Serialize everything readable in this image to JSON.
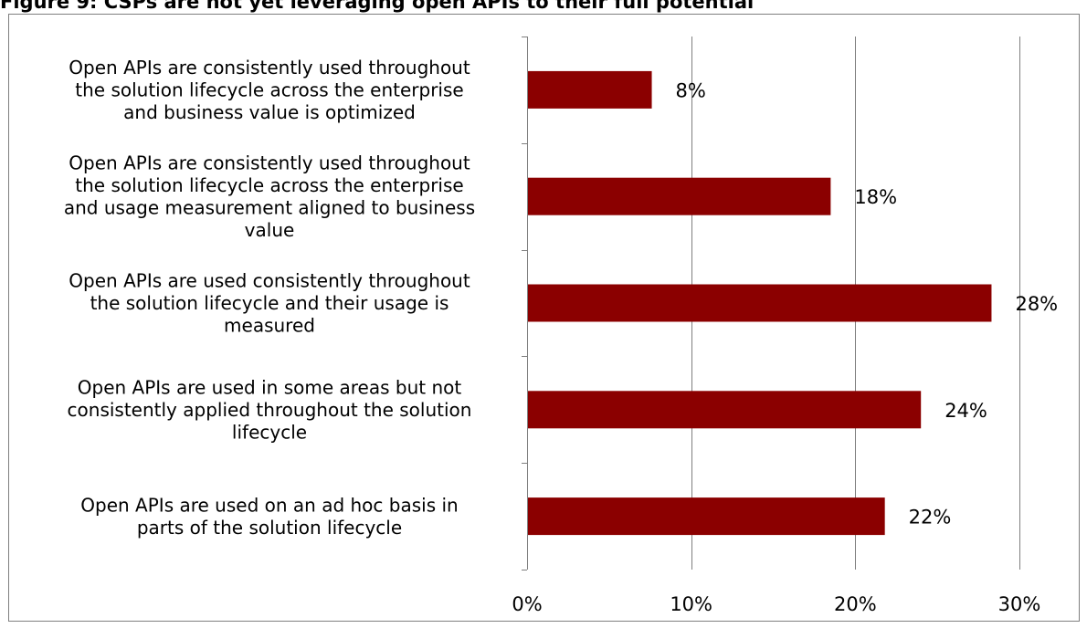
{
  "chart_data": {
    "type": "bar",
    "orientation": "horizontal",
    "title": "Figure 9: CSPs are not yet leveraging open APIs to their full potential",
    "categories": [
      "Open APIs are consistently used throughout the solution lifecycle across the enterprise and business value is optimized",
      "Open APIs are consistently used throughout the solution lifecycle across the enterprise and usage measurement aligned to business value",
      "Open APIs are used consistently throughout the solution lifecycle and their  usage is measured",
      "Open APIs are used in some areas but not consistently applied throughout the solution lifecycle",
      "Open APIs are used on an ad hoc basis in parts of the solution lifecycle"
    ],
    "category_lines": [
      [
        "Open APIs are consistently used throughout",
        "the solution lifecycle across the enterprise",
        "and business value is optimized"
      ],
      [
        "Open APIs are consistently used throughout",
        "the solution lifecycle across the enterprise",
        "and usage measurement aligned to business",
        "value"
      ],
      [
        "Open APIs are used consistently throughout",
        "the solution lifecycle and their  usage is",
        "measured"
      ],
      [
        "Open APIs are used in some areas but not",
        "consistently applied throughout the solution",
        "lifecycle"
      ],
      [
        "Open APIs are used on an ad hoc basis in",
        "parts of the solution lifecycle"
      ]
    ],
    "values": [
      7.6,
      18.5,
      28.3,
      24.0,
      21.8
    ],
    "data_labels": [
      "8%",
      "18%",
      "28%",
      "24%",
      "22%"
    ],
    "xlim": [
      0,
      30
    ],
    "xticks": [
      0,
      10,
      20,
      30
    ],
    "xtick_labels": [
      "0%",
      "10%",
      "20%",
      "30%"
    ],
    "grid": true,
    "legend": "none",
    "xlabel": "",
    "ylabel": "",
    "colors": {
      "bar": "#8b0000",
      "grid": "#7f7f7f",
      "axis": "#7f7f7f",
      "border": "#7f7f7f"
    }
  }
}
